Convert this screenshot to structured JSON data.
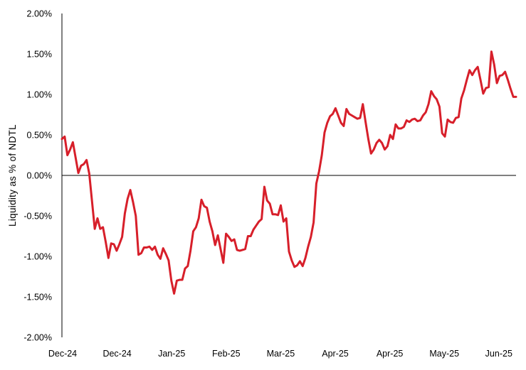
{
  "chart_data": {
    "type": "line",
    "title": "",
    "xlabel": "",
    "ylabel": "Liquidity as % of NDTL",
    "ylim": [
      -2.0,
      2.0
    ],
    "y_ticks": [
      2.0,
      1.5,
      1.0,
      0.5,
      0.0,
      -0.5,
      -1.0,
      -1.5,
      -2.0
    ],
    "y_tick_labels": [
      "2.00%",
      "1.50%",
      "1.00%",
      "0.50%",
      "0.00%",
      "-0.50%",
      "-1.00%",
      "-1.50%",
      "-2.00%"
    ],
    "x_tick_labels": [
      "Dec-24",
      "Dec-24",
      "Jan-25",
      "Feb-25",
      "Mar-25",
      "Apr-25",
      "Apr-25",
      "May-25",
      "Jun-25"
    ],
    "grid": false,
    "legend": "none",
    "line_color": "#d71f2a",
    "series": [
      {
        "values": [
          0.45,
          0.48,
          0.25,
          0.32,
          0.41,
          0.22,
          0.03,
          0.12,
          0.14,
          0.19,
          0.02,
          -0.32,
          -0.66,
          -0.53,
          -0.66,
          -0.64,
          -0.82,
          -1.02,
          -0.84,
          -0.85,
          -0.93,
          -0.85,
          -0.76,
          -0.47,
          -0.29,
          -0.18,
          -0.33,
          -0.5,
          -0.98,
          -0.96,
          -0.89,
          -0.89,
          -0.88,
          -0.92,
          -0.88,
          -0.98,
          -1.03,
          -0.9,
          -0.97,
          -1.05,
          -1.3,
          -1.46,
          -1.3,
          -1.29,
          -1.29,
          -1.15,
          -1.12,
          -0.93,
          -0.69,
          -0.64,
          -0.53,
          -0.3,
          -0.38,
          -0.4,
          -0.57,
          -0.69,
          -0.86,
          -0.74,
          -0.91,
          -1.08,
          -0.72,
          -0.76,
          -0.81,
          -0.79,
          -0.92,
          -0.93,
          -0.92,
          -0.91,
          -0.75,
          -0.75,
          -0.67,
          -0.62,
          -0.57,
          -0.54,
          -0.14,
          -0.31,
          -0.35,
          -0.48,
          -0.48,
          -0.49,
          -0.37,
          -0.57,
          -0.53,
          -0.94,
          -1.05,
          -1.13,
          -1.11,
          -1.06,
          -1.12,
          -1.02,
          -0.88,
          -0.76,
          -0.58,
          -0.1,
          0.05,
          0.25,
          0.53,
          0.65,
          0.73,
          0.76,
          0.83,
          0.74,
          0.65,
          0.61,
          0.82,
          0.76,
          0.74,
          0.72,
          0.7,
          0.71,
          0.88,
          0.66,
          0.45,
          0.27,
          0.32,
          0.4,
          0.44,
          0.4,
          0.32,
          0.36,
          0.5,
          0.45,
          0.63,
          0.58,
          0.58,
          0.6,
          0.68,
          0.66,
          0.69,
          0.7,
          0.67,
          0.68,
          0.74,
          0.78,
          0.88,
          1.04,
          0.98,
          0.94,
          0.85,
          0.52,
          0.48,
          0.69,
          0.66,
          0.65,
          0.71,
          0.72,
          0.95,
          1.05,
          1.18,
          1.3,
          1.24,
          1.3,
          1.34,
          1.18,
          1.01,
          1.08,
          1.09,
          1.53,
          1.37,
          1.14,
          1.23,
          1.24,
          1.28,
          1.18,
          1.07,
          0.97,
          0.97
        ]
      }
    ]
  }
}
